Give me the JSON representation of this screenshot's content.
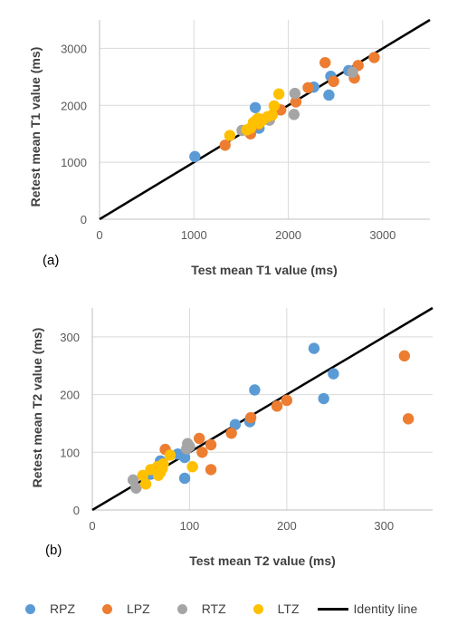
{
  "chart_data": [
    {
      "type": "scatter",
      "panel_label": "(a)",
      "xlabel": "Test mean T1 value (ms)",
      "ylabel": "Retest mean T1 value (ms)",
      "xlim": [
        0,
        3500
      ],
      "ylim": [
        0,
        3500
      ],
      "xticks": [
        0,
        1000,
        2000,
        3000
      ],
      "yticks": [
        0,
        1000,
        2000,
        3000
      ],
      "grid": "horizontal",
      "identity_line": true,
      "series": [
        {
          "name": "RPZ",
          "color": "#5B9BD5",
          "points": [
            [
              1010,
              1100
            ],
            [
              1650,
              1960
            ],
            [
              1690,
              1600
            ],
            [
              2270,
              2320
            ],
            [
              2450,
              2510
            ],
            [
              2430,
              2180
            ],
            [
              2640,
              2610
            ]
          ]
        },
        {
          "name": "LPZ",
          "color": "#ED7D31",
          "points": [
            [
              1330,
              1300
            ],
            [
              1600,
              1500
            ],
            [
              1680,
              1660
            ],
            [
              1920,
              1920
            ],
            [
              2080,
              2060
            ],
            [
              2210,
              2310
            ],
            [
              2390,
              2750
            ],
            [
              2480,
              2420
            ],
            [
              2700,
              2480
            ],
            [
              2740,
              2700
            ],
            [
              2910,
              2840
            ]
          ]
        },
        {
          "name": "RTZ",
          "color": "#A5A5A5",
          "points": [
            [
              1510,
              1560
            ],
            [
              1750,
              1760
            ],
            [
              1800,
              1740
            ],
            [
              2060,
              1840
            ],
            [
              2070,
              2210
            ],
            [
              2680,
              2580
            ]
          ]
        },
        {
          "name": "LTZ",
          "color": "#FFC000",
          "points": [
            [
              1380,
              1470
            ],
            [
              1560,
              1570
            ],
            [
              1600,
              1600
            ],
            [
              1630,
              1700
            ],
            [
              1660,
              1740
            ],
            [
              1680,
              1770
            ],
            [
              1720,
              1730
            ],
            [
              1780,
              1800
            ],
            [
              1830,
              1830
            ],
            [
              1850,
              1990
            ],
            [
              1900,
              2200
            ],
            [
              1690,
              1680
            ]
          ]
        }
      ]
    },
    {
      "type": "scatter",
      "panel_label": "(b)",
      "xlabel": "Test mean T2 value (ms)",
      "ylabel": "Retest mean T2 value (ms)",
      "xlim": [
        0,
        350
      ],
      "ylim": [
        0,
        350
      ],
      "xticks": [
        0,
        100,
        200,
        300
      ],
      "yticks": [
        0,
        100,
        200,
        300
      ],
      "grid": "horizontal",
      "identity_line": true,
      "series": [
        {
          "name": "RPZ",
          "color": "#5B9BD5",
          "points": [
            [
              60,
              62
            ],
            [
              70,
              85
            ],
            [
              88,
              97
            ],
            [
              95,
              55
            ],
            [
              95,
              91
            ],
            [
              147,
              148
            ],
            [
              162,
              153
            ],
            [
              167,
              208
            ],
            [
              228,
              280
            ],
            [
              238,
              193
            ],
            [
              248,
              236
            ]
          ]
        },
        {
          "name": "LPZ",
          "color": "#ED7D31",
          "points": [
            [
              75,
              105
            ],
            [
              110,
              124
            ],
            [
              113,
              100
            ],
            [
              122,
              113
            ],
            [
              122,
              70
            ],
            [
              143,
              133
            ],
            [
              163,
              160
            ],
            [
              190,
              180
            ],
            [
              200,
              190
            ],
            [
              321,
              267
            ],
            [
              325,
              158
            ]
          ]
        },
        {
          "name": "RTZ",
          "color": "#A5A5A5",
          "points": [
            [
              42,
              52
            ],
            [
              45,
              38
            ],
            [
              97,
              106
            ],
            [
              98,
              115
            ],
            [
              100,
              110
            ]
          ]
        },
        {
          "name": "LTZ",
          "color": "#FFC000",
          "points": [
            [
              52,
              60
            ],
            [
              55,
              45
            ],
            [
              60,
              70
            ],
            [
              67,
              75
            ],
            [
              68,
              60
            ],
            [
              70,
              65
            ],
            [
              72,
              72
            ],
            [
              73,
              80
            ],
            [
              80,
              95
            ],
            [
              103,
              75
            ]
          ]
        }
      ]
    }
  ],
  "legend": {
    "items": [
      {
        "label": "RPZ",
        "color": "#5B9BD5",
        "kind": "marker"
      },
      {
        "label": "LPZ",
        "color": "#ED7D31",
        "kind": "marker"
      },
      {
        "label": "RTZ",
        "color": "#A5A5A5",
        "kind": "marker"
      },
      {
        "label": "LTZ",
        "color": "#FFC000",
        "kind": "marker"
      },
      {
        "label": "Identity line",
        "color": "#000000",
        "kind": "line"
      }
    ]
  }
}
